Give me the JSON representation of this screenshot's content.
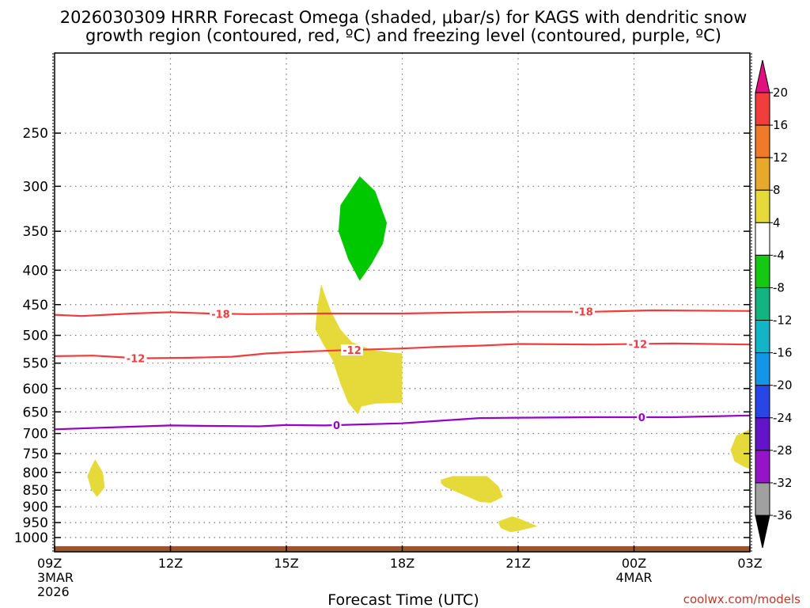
{
  "chart_data": {
    "type": "contour",
    "title_line1": "2026030309 HRRR Forecast Omega (shaded, μbar/s) for KAGS with dendritic snow",
    "title_line2": "growth region (contoured, red, ºC) and freezing level (contoured, purple, ºC)",
    "xlabel": "Forecast Time (UTC)",
    "ylabel": "",
    "credit": "coolwx.com/models",
    "x_range_hours": [
      0,
      18
    ],
    "x_ticks": [
      {
        "hour": 0,
        "label": "09Z",
        "sub1": "3MAR",
        "sub2": "2026"
      },
      {
        "hour": 3,
        "label": "12Z",
        "sub1": "",
        "sub2": ""
      },
      {
        "hour": 6,
        "label": "15Z",
        "sub1": "",
        "sub2": ""
      },
      {
        "hour": 9,
        "label": "18Z",
        "sub1": "",
        "sub2": ""
      },
      {
        "hour": 12,
        "label": "21Z",
        "sub1": "",
        "sub2": ""
      },
      {
        "hour": 15,
        "label": "00Z",
        "sub1": "4MAR",
        "sub2": ""
      },
      {
        "hour": 18,
        "label": "03Z",
        "sub1": "",
        "sub2": ""
      }
    ],
    "y_scale": "log-pressure",
    "y_range_hPa": [
      1050,
      190
    ],
    "y_ticks": [
      250,
      300,
      350,
      400,
      450,
      500,
      550,
      600,
      650,
      700,
      750,
      800,
      850,
      900,
      950,
      1000
    ],
    "grid": true,
    "colorbar": {
      "orientation": "vertical",
      "placement": "right",
      "tick_labels": [
        "20",
        "16",
        "12",
        "8",
        "4",
        "-4",
        "-8",
        "-12",
        "-16",
        "-20",
        "-24",
        "-28",
        "-32",
        "-36"
      ],
      "colors": [
        "#e0107f",
        "#f23d3d",
        "#f07a2a",
        "#e8a82c",
        "#e6da3a",
        "#ffffff",
        "#14c814",
        "#14b482",
        "#14b4c8",
        "#1496e6",
        "#2846e6",
        "#6414c8",
        "#9614c8",
        "#a0a0a0",
        "#000000"
      ]
    },
    "contours": [
      {
        "name": "-18",
        "color": "#f03c3c",
        "points": [
          [
            0,
            466
          ],
          [
            0.7,
            468
          ],
          [
            2,
            464
          ],
          [
            3,
            462
          ],
          [
            4,
            464
          ],
          [
            5,
            465
          ],
          [
            7,
            464
          ],
          [
            9,
            464
          ],
          [
            11,
            462
          ],
          [
            12,
            461
          ],
          [
            14,
            461
          ],
          [
            15.5,
            459
          ],
          [
            18,
            460
          ]
        ],
        "label_positions": [
          4.3,
          13.7
        ]
      },
      {
        "name": "-12",
        "color": "#f03c3c",
        "points": [
          [
            0,
            537
          ],
          [
            1,
            536
          ],
          [
            2.2,
            541
          ],
          [
            3.5,
            540
          ],
          [
            4.6,
            538
          ],
          [
            5.5,
            532
          ],
          [
            6.7,
            528
          ],
          [
            7.5,
            526
          ],
          [
            9,
            523
          ],
          [
            10,
            520
          ],
          [
            11,
            518
          ],
          [
            12,
            515
          ],
          [
            14,
            516
          ],
          [
            16,
            514
          ],
          [
            18,
            516
          ]
        ],
        "label_positions": [
          2.1,
          7.7,
          15.1
        ]
      },
      {
        "name": "0",
        "color": "#9600c8",
        "points": [
          [
            0,
            690
          ],
          [
            1.3,
            686
          ],
          [
            3,
            681
          ],
          [
            4,
            682
          ],
          [
            5.3,
            683
          ],
          [
            6,
            680
          ],
          [
            7,
            681
          ],
          [
            9,
            676
          ],
          [
            10,
            670
          ],
          [
            11,
            664
          ],
          [
            12,
            663
          ],
          [
            14,
            662
          ],
          [
            16,
            662
          ],
          [
            18,
            658
          ]
        ],
        "label_positions": [
          7.3,
          15.2
        ]
      }
    ],
    "shaded_regions": [
      {
        "category": "-8 to -4",
        "color": "#00c800",
        "points": [
          [
            7.9,
            290
          ],
          [
            8.3,
            305
          ],
          [
            8.6,
            340
          ],
          [
            8.5,
            365
          ],
          [
            8.2,
            392
          ],
          [
            7.9,
            415
          ],
          [
            7.6,
            385
          ],
          [
            7.35,
            350
          ],
          [
            7.4,
            320
          ]
        ]
      },
      {
        "category": "4 to 8",
        "color": "#e6da3a",
        "points": [
          [
            6.9,
            420
          ],
          [
            7.15,
            460
          ],
          [
            7.4,
            490
          ],
          [
            7.7,
            512
          ],
          [
            8.2,
            525
          ],
          [
            8.7,
            530
          ],
          [
            9.0,
            532
          ],
          [
            9.0,
            630
          ],
          [
            8.3,
            632
          ],
          [
            7.95,
            638
          ],
          [
            7.85,
            655
          ],
          [
            7.6,
            630
          ],
          [
            7.4,
            590
          ],
          [
            7.2,
            545
          ],
          [
            6.95,
            515
          ],
          [
            6.75,
            490
          ],
          [
            6.8,
            455
          ]
        ]
      },
      {
        "category": "4 to 8",
        "color": "#e6da3a",
        "points": [
          [
            1.05,
            765
          ],
          [
            1.25,
            800
          ],
          [
            1.3,
            842
          ],
          [
            1.1,
            870
          ],
          [
            0.95,
            848
          ],
          [
            0.85,
            810
          ],
          [
            0.95,
            785
          ]
        ]
      },
      {
        "category": "4 to 8",
        "color": "#e6da3a",
        "points": [
          [
            10.0,
            820
          ],
          [
            10.3,
            810
          ],
          [
            11.2,
            810
          ],
          [
            11.5,
            840
          ],
          [
            11.6,
            870
          ],
          [
            11.3,
            888
          ],
          [
            11.0,
            885
          ],
          [
            10.5,
            860
          ],
          [
            10.1,
            840
          ],
          [
            10.0,
            830
          ]
        ]
      },
      {
        "category": "4 to 8",
        "color": "#e6da3a",
        "points": [
          [
            11.5,
            945
          ],
          [
            11.85,
            930
          ],
          [
            12.05,
            938
          ],
          [
            12.5,
            962
          ],
          [
            12.0,
            978
          ],
          [
            11.8,
            982
          ],
          [
            11.55,
            968
          ],
          [
            11.5,
            955
          ]
        ]
      },
      {
        "category": "4 to 8",
        "color": "#e6da3a",
        "points": [
          [
            18,
            690
          ],
          [
            17.65,
            705
          ],
          [
            17.5,
            740
          ],
          [
            17.6,
            770
          ],
          [
            17.85,
            785
          ],
          [
            18,
            790
          ]
        ]
      }
    ],
    "ground": {
      "color": "#a0522d",
      "pressure_top_hPa": 1030
    }
  }
}
